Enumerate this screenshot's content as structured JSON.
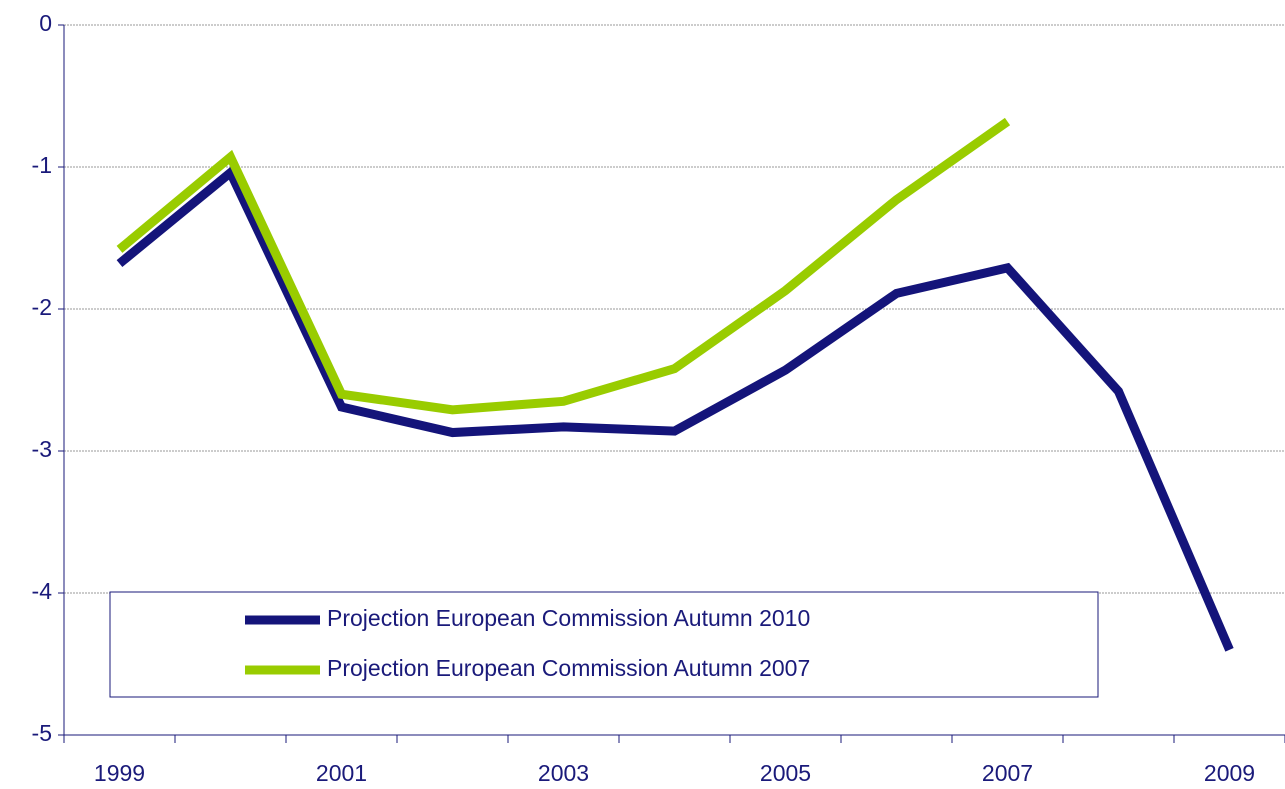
{
  "chart_data": {
    "type": "line",
    "categories": [
      "1999",
      null,
      "2001",
      null,
      "2003",
      null,
      "2005",
      null,
      "2007",
      null,
      "2009"
    ],
    "series": [
      {
        "name": "Projection European Commission Autumn 2010",
        "color": "#14147a",
        "values": [
          -1.68,
          -1.04,
          -2.69,
          -2.87,
          -2.83,
          -2.86,
          -2.43,
          -1.89,
          -1.71,
          -2.58,
          -4.4
        ]
      },
      {
        "name": "Projection European Commission Autumn 2007",
        "color": "#99cc00",
        "values": [
          -1.58,
          -0.93,
          -2.6,
          -2.71,
          -2.65,
          -2.42,
          -1.87,
          -1.23,
          -0.68,
          null,
          null
        ]
      }
    ],
    "ylim": [
      -5,
      0
    ],
    "yticks": [
      0,
      -1,
      -2,
      -3,
      -4,
      -5
    ],
    "grid": true,
    "legend": "lower left"
  }
}
